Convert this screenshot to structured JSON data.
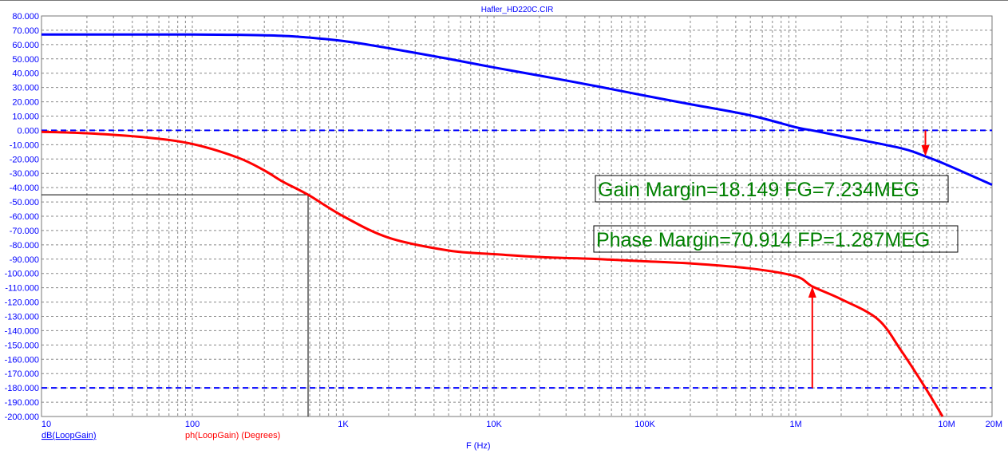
{
  "chart_data": {
    "type": "line",
    "title": "Hafler_HD220C.CIR",
    "xlabel": "F (Hz)",
    "xscale": "log",
    "xlim": [
      10,
      20000000
    ],
    "ylim": [
      -200,
      80
    ],
    "grid": true,
    "x_ticks": [
      {
        "v": 10,
        "label": "10"
      },
      {
        "v": 100,
        "label": "100"
      },
      {
        "v": 1000,
        "label": "1K"
      },
      {
        "v": 10000,
        "label": "10K"
      },
      {
        "v": 100000,
        "label": "100K"
      },
      {
        "v": 1000000,
        "label": "1M"
      },
      {
        "v": 10000000,
        "label": "10M"
      },
      {
        "v": 20000000,
        "label": "20M"
      }
    ],
    "y_ticks": [
      "80.000",
      "70.000",
      "60.000",
      "50.000",
      "40.000",
      "30.000",
      "20.000",
      "10.000",
      "0.000",
      "-10.000",
      "-20.000",
      "-30.000",
      "-40.000",
      "-50.000",
      "-60.000",
      "-70.000",
      "-80.000",
      "-90.000",
      "-100.000",
      "-110.000",
      "-120.000",
      "-130.000",
      "-140.000",
      "-150.000",
      "-160.000",
      "-170.000",
      "-180.000",
      "-190.000",
      "-200.000"
    ],
    "series": [
      {
        "name": "dB(LoopGain)",
        "color": "#0000ff",
        "x": [
          10,
          100,
          200,
          300,
          500,
          1000,
          2000,
          5000,
          10000,
          20000,
          50000,
          100000,
          200000,
          500000,
          1000000,
          1287000,
          2000000,
          5000000,
          7234000,
          10000000,
          20000000
        ],
        "y": [
          67,
          67,
          66.8,
          66.5,
          65.5,
          62.5,
          57.5,
          50,
          44,
          38.3,
          30.5,
          24.3,
          18.3,
          10.5,
          2.2,
          0,
          -4,
          -12.5,
          -18.149,
          -24,
          -38
        ]
      },
      {
        "name": "ph(LoopGain) (Degrees)",
        "color": "#ff0000",
        "x": [
          10,
          20,
          50,
          100,
          200,
          300,
          400,
          585,
          1000,
          2000,
          5000,
          10000,
          20000,
          50000,
          100000,
          200000,
          500000,
          1000000,
          1287000,
          2000000,
          3500000,
          5000000,
          7234000,
          9400000
        ],
        "y": [
          -1,
          -2,
          -5,
          -9.5,
          -19,
          -28,
          -36,
          -45,
          -60,
          -75,
          -84,
          -86.5,
          -88.5,
          -90,
          -91.5,
          -93,
          -96.5,
          -102,
          -109.086,
          -118,
          -132,
          -154,
          -180,
          -200
        ]
      }
    ],
    "reference_lines": [
      0,
      -180
    ],
    "cursor": {
      "x": 585,
      "y": -45
    },
    "annotations": {
      "gain_margin": {
        "text": "Gain Margin=18.149 FG=7.234MEG",
        "freq": 7234000,
        "from": 0,
        "to": -18.149
      },
      "phase_margin": {
        "text": "Phase Margin=70.914 FP=1.287MEG",
        "freq": 1287000,
        "from": -180,
        "to": -109.086
      }
    }
  },
  "legend": {
    "gain": "dB(LoopGain)",
    "phase": "ph(LoopGain) (Degrees)"
  },
  "colors": {
    "gain": "#0000ff",
    "phase": "#ff0000",
    "label": "#008000"
  }
}
